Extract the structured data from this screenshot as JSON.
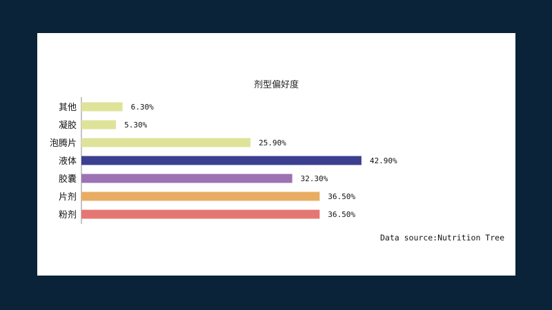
{
  "chart_data": {
    "type": "bar",
    "orientation": "horizontal",
    "title": "剂型偏好度",
    "categories": [
      "其他",
      "凝胶",
      "泡腾片",
      "液体",
      "胶囊",
      "片剂",
      "粉剂"
    ],
    "values": [
      6.3,
      5.3,
      25.9,
      42.9,
      32.3,
      36.5,
      36.5
    ],
    "value_labels": [
      "6.30%",
      "5.30%",
      "25.90%",
      "42.90%",
      "32.30%",
      "36.50%",
      "36.50%"
    ],
    "colors": [
      "#dfe39a",
      "#dfe39a",
      "#dfe39a",
      "#3c3f8f",
      "#9c72b4",
      "#e8ad63",
      "#e47772"
    ],
    "xlim": [
      0,
      50
    ],
    "xlabel": "",
    "ylabel": "",
    "grid": false,
    "legend": "none"
  },
  "footer": {
    "source": "Data source:Nutrition Tree"
  }
}
